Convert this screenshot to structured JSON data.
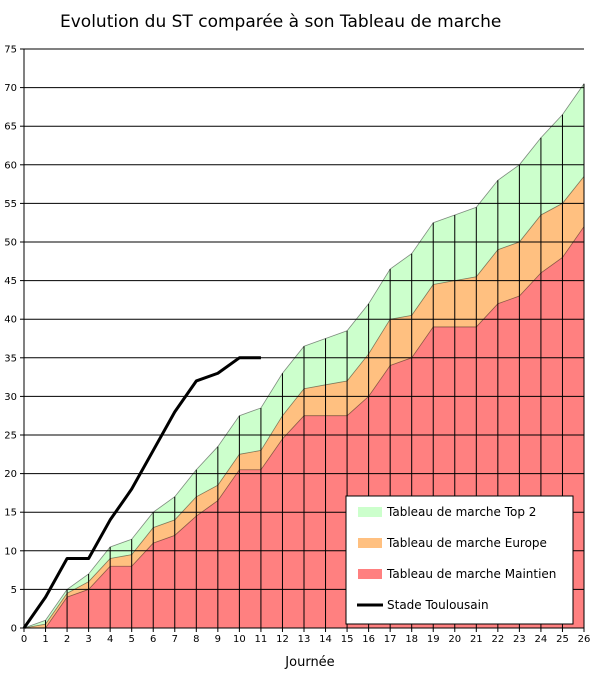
{
  "chart_data": {
    "type": "area",
    "title": "Evolution du ST comparée à son Tableau de marche",
    "xlabel": "Journée",
    "ylabel": "",
    "xlim": [
      0,
      26
    ],
    "ylim": [
      0,
      75
    ],
    "x_ticks": [
      0,
      1,
      2,
      3,
      4,
      5,
      6,
      7,
      8,
      9,
      10,
      11,
      12,
      13,
      14,
      15,
      16,
      17,
      18,
      19,
      20,
      21,
      22,
      23,
      24,
      25,
      26
    ],
    "y_ticks": [
      0,
      5,
      10,
      15,
      20,
      25,
      30,
      35,
      40,
      45,
      50,
      55,
      60,
      65,
      70,
      75
    ],
    "grid": "horizontal",
    "legend_position": "bottom-right",
    "x": [
      0,
      1,
      2,
      3,
      4,
      5,
      6,
      7,
      8,
      9,
      10,
      11,
      12,
      13,
      14,
      15,
      16,
      17,
      18,
      19,
      20,
      21,
      22,
      23,
      24,
      25,
      26
    ],
    "series": [
      {
        "name": "Tableau de marche Top 2",
        "kind": "area",
        "color": "#ccffcc",
        "values": [
          0,
          1,
          5,
          7,
          10.5,
          11.5,
          15,
          17,
          20.5,
          23.5,
          27.5,
          28.5,
          33,
          36.5,
          37.5,
          38.5,
          42,
          46.5,
          48.5,
          52.5,
          53.5,
          54.5,
          58,
          60,
          63.5,
          66.5,
          70.5
        ]
      },
      {
        "name": "Tableau de marche Europe",
        "kind": "area",
        "color": "#ffc080",
        "values": [
          0,
          0.5,
          4.5,
          6,
          9,
          9.5,
          13,
          14,
          17,
          18.5,
          22.5,
          23,
          27.5,
          31,
          31.5,
          32,
          35.5,
          40,
          40.5,
          44.5,
          45,
          45.5,
          49,
          50,
          53.5,
          55,
          58.5
        ]
      },
      {
        "name": "Tableau de marche Maintien",
        "kind": "area",
        "color": "#ff8080",
        "values": [
          0,
          0,
          4,
          5,
          8,
          8,
          11,
          12,
          14.5,
          16.5,
          20.5,
          20.5,
          24.5,
          27.5,
          27.5,
          27.5,
          30,
          34,
          35,
          39,
          39,
          39,
          42,
          43,
          46,
          48,
          52
        ]
      },
      {
        "name": "Stade Toulousain",
        "kind": "line",
        "color": "#000000",
        "x": [
          0,
          1,
          2,
          3,
          4,
          5,
          6,
          7,
          8,
          9,
          10,
          11
        ],
        "values": [
          0,
          4,
          9,
          9,
          14,
          18,
          23,
          28,
          32,
          33,
          35,
          35
        ]
      }
    ]
  }
}
